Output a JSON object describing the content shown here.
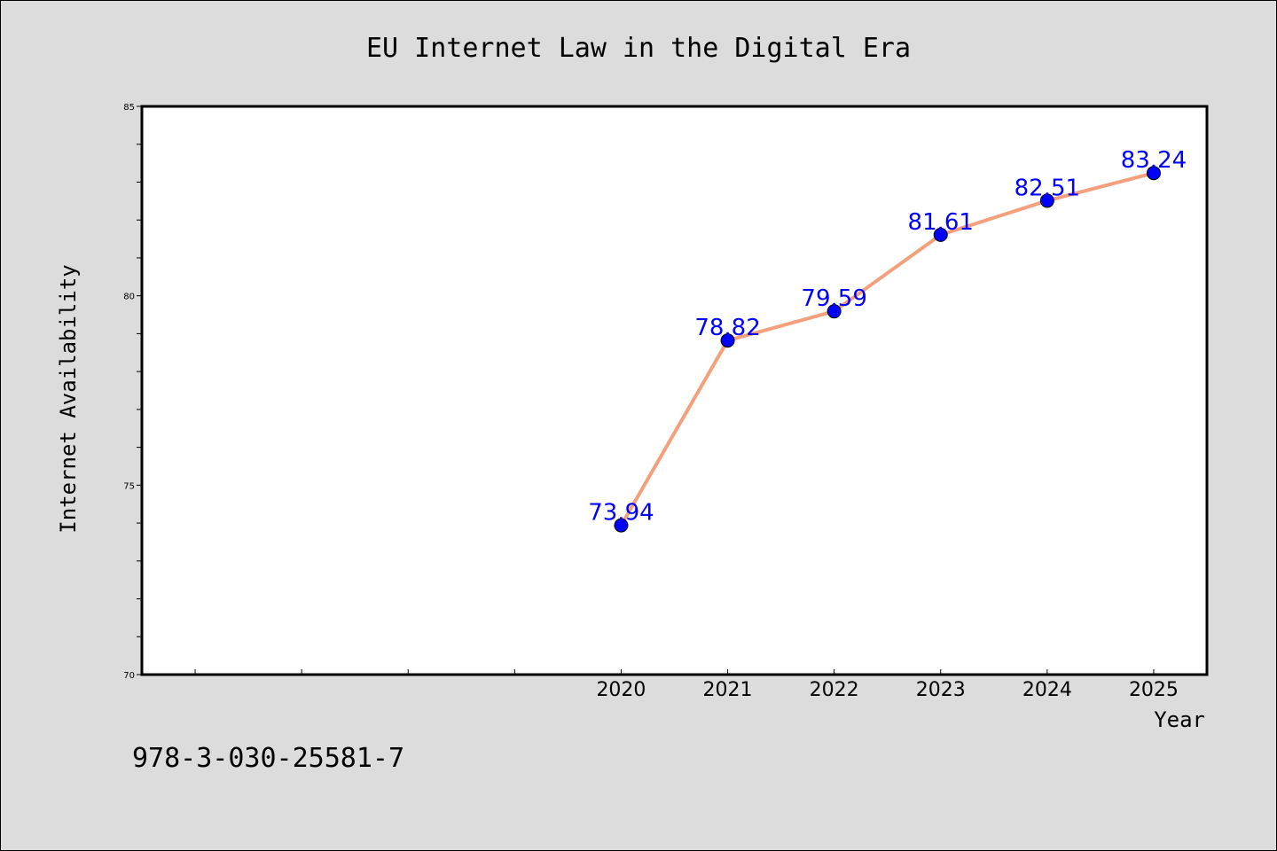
{
  "chart_data": {
    "type": "line",
    "title": "EU Internet Law in the Digital Era",
    "xlabel": "Year",
    "ylabel": "Internet Availability",
    "x": [
      2020,
      2021,
      2022,
      2023,
      2024,
      2025
    ],
    "x_tick_labels": [
      "2020",
      "2021",
      "2022",
      "2023",
      "2024",
      "2025"
    ],
    "xlim": [
      2015.5,
      2025.5
    ],
    "ylim": [
      70,
      85
    ],
    "y_ticks": [
      70,
      75,
      80,
      85
    ],
    "y_tick_labels": [
      "70",
      "75",
      "80",
      "85"
    ],
    "series": [
      {
        "values": [
          73.94,
          78.82,
          79.59,
          81.61,
          82.51,
          83.24
        ],
        "data_labels": [
          "73.94",
          "78.82",
          "79.59",
          "81.61",
          "82.51",
          "83.24"
        ],
        "line_color": "#f4a07c",
        "marker_color": "#0000ff"
      }
    ],
    "grid": false,
    "background_color": "#dcdcdc",
    "plot_background_color": "#ffffff",
    "annotations": [
      "978-3-030-25581-7"
    ]
  }
}
